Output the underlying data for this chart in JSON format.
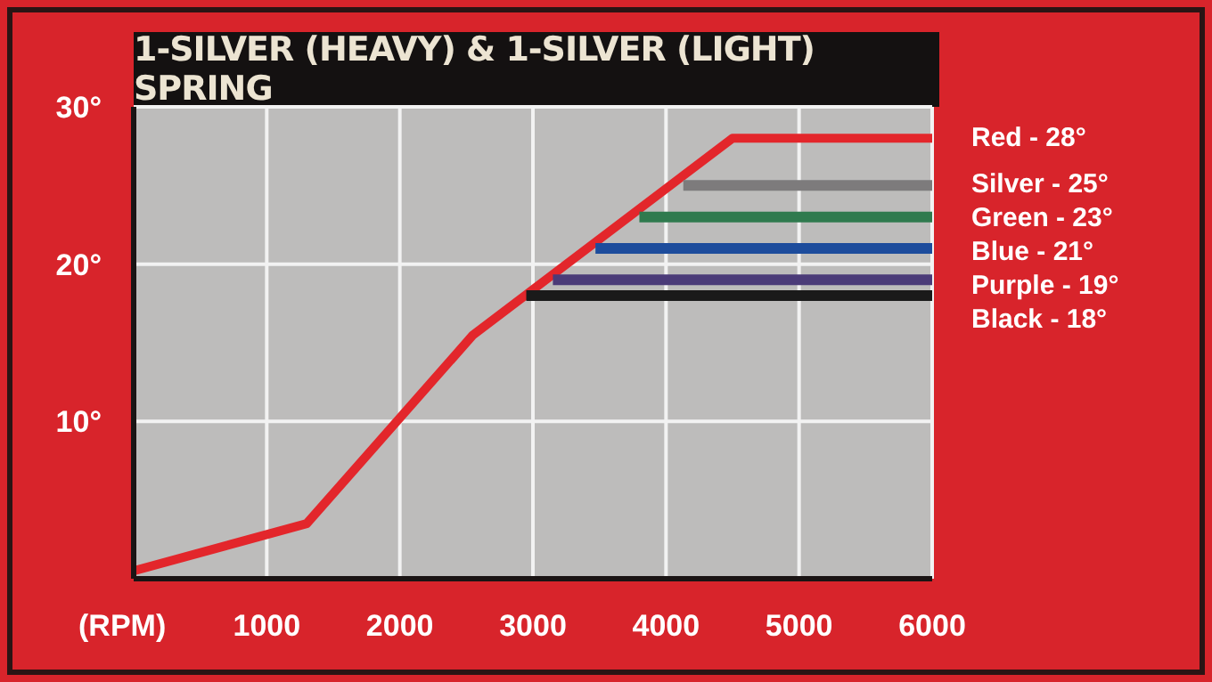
{
  "chart_data": {
    "type": "line",
    "title": "1-SILVER (HEAVY) & 1-SILVER (LIGHT) SPRING",
    "xlabel": "(RPM)",
    "xlim": [
      0,
      6000
    ],
    "xticks": [
      1000,
      2000,
      3000,
      4000,
      5000,
      6000
    ],
    "ylim": [
      0,
      30
    ],
    "yticks": [
      {
        "value": 10,
        "label": "10°"
      },
      {
        "value": 20,
        "label": "20°"
      },
      {
        "value": 30,
        "label": "30°"
      }
    ],
    "grid": true,
    "series": [
      {
        "name": "Red - 28°",
        "color": "#e3262b",
        "x": [
          0,
          1300,
          2550,
          4500,
          6000
        ],
        "values": [
          0.5,
          3.5,
          15.5,
          28,
          28
        ]
      },
      {
        "name": "Silver - 25°",
        "color": "#7d7b7c",
        "x": [
          4130,
          6000
        ],
        "values": [
          25,
          25
        ]
      },
      {
        "name": "Green - 23°",
        "color": "#2f7a4e",
        "x": [
          3800,
          6000
        ],
        "values": [
          23,
          23
        ]
      },
      {
        "name": "Blue - 21°",
        "color": "#1d4c9c",
        "x": [
          3470,
          6000
        ],
        "values": [
          21,
          21
        ]
      },
      {
        "name": "Purple - 19°",
        "color": "#4b3b78",
        "x": [
          3150,
          6000
        ],
        "values": [
          19,
          19
        ]
      },
      {
        "name": "Black - 18°",
        "color": "#1a1a1a",
        "x": [
          2950,
          6000
        ],
        "values": [
          18,
          18
        ]
      }
    ]
  }
}
